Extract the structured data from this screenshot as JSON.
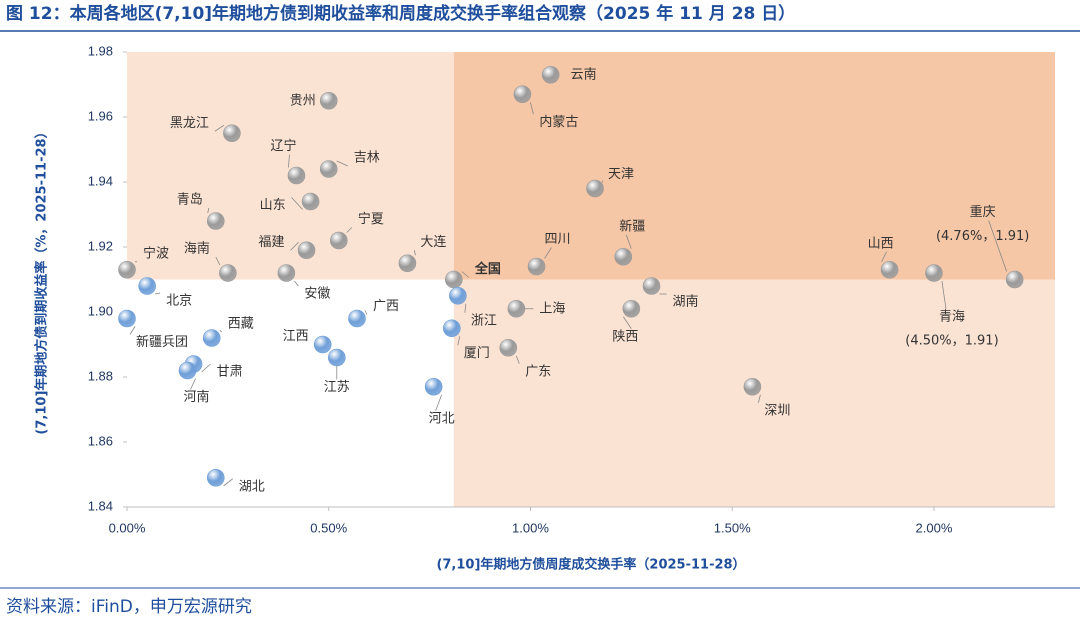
{
  "chart_data": {
    "type": "scatter",
    "title": "图 12：本周各地区(7,10]年期地方债到期收益率和周度成交换手率组合观察（2025 年 11 月 28 日）",
    "x_label": "(7,10]年期地方债周度成交换手率（2025-11-28）",
    "y_label": "(7,10]年期地方债到期收益率（%，2025-11-28）",
    "source": "资料来源：iFinD，申万宏源研究",
    "xlim": [
      0,
      2.3
    ],
    "ylim": [
      1.84,
      1.98
    ],
    "xticks": [
      {
        "value": 0,
        "label": "0.00%"
      },
      {
        "value": 0.5,
        "label": "0.50%"
      },
      {
        "value": 1,
        "label": "1.00%"
      },
      {
        "value": 1.5,
        "label": "1.50%"
      },
      {
        "value": 2,
        "label": "2.00%"
      }
    ],
    "yticks": [
      1.84,
      1.86,
      1.88,
      {
        "value": 1.9,
        "label": "1.90"
      },
      1.92,
      1.94,
      1.96,
      1.98
    ],
    "quadrant_split": {
      "x": 0.81,
      "y": 1.91
    },
    "quadrant_colors": {
      "upper_left": "#fbe3d3",
      "upper_right": "#f6c7a6",
      "lower_right": "#fbe3d3"
    },
    "points": [
      {
        "name": "云南",
        "x": 1.05,
        "y": 1.973,
        "color": "#9a9a9a"
      },
      {
        "name": "内蒙古",
        "x": 0.98,
        "y": 1.967,
        "color": "#9a9a9a"
      },
      {
        "name": "贵州",
        "x": 0.5,
        "y": 1.965,
        "color": "#9a9a9a"
      },
      {
        "name": "黑龙江",
        "x": 0.26,
        "y": 1.955,
        "color": "#9a9a9a"
      },
      {
        "name": "吉林",
        "x": 0.5,
        "y": 1.944,
        "color": "#9a9a9a"
      },
      {
        "name": "辽宁",
        "x": 0.42,
        "y": 1.942,
        "color": "#9a9a9a"
      },
      {
        "name": "天津",
        "x": 1.16,
        "y": 1.938,
        "color": "#9a9a9a"
      },
      {
        "name": "山东",
        "x": 0.455,
        "y": 1.934,
        "color": "#9a9a9a"
      },
      {
        "name": "青岛",
        "x": 0.22,
        "y": 1.928,
        "color": "#9a9a9a"
      },
      {
        "name": "宁夏",
        "x": 0.525,
        "y": 1.922,
        "color": "#9a9a9a"
      },
      {
        "name": "福建",
        "x": 0.445,
        "y": 1.919,
        "color": "#9a9a9a"
      },
      {
        "name": "新疆",
        "x": 1.23,
        "y": 1.917,
        "color": "#9a9a9a"
      },
      {
        "name": "大连",
        "x": 0.695,
        "y": 1.915,
        "color": "#9a9a9a"
      },
      {
        "name": "四川",
        "x": 1.015,
        "y": 1.914,
        "color": "#9a9a9a"
      },
      {
        "name": "海南",
        "x": 0.25,
        "y": 1.912,
        "color": "#9a9a9a"
      },
      {
        "name": "安徽",
        "x": 0.395,
        "y": 1.912,
        "color": "#9a9a9a"
      },
      {
        "name": "宁波",
        "x": 0,
        "y": 1.913,
        "color": "#9a9a9a"
      },
      {
        "name": "山西",
        "x": 1.89,
        "y": 1.913,
        "color": "#9a9a9a"
      },
      {
        "name": "青海",
        "x": 2,
        "y": 1.912,
        "color": "#9a9a9a",
        "annotation": "(4.50%，1.91)"
      },
      {
        "name": "重庆",
        "x": 2.2,
        "y": 1.91,
        "color": "#9a9a9a",
        "annotation": "(4.76%，1.91)"
      },
      {
        "name": "全国",
        "x": 0.81,
        "y": 1.91,
        "color": "#9a9a9a"
      },
      {
        "name": "北京",
        "x": 0.05,
        "y": 1.908,
        "color": "#6f9fd8"
      },
      {
        "name": "湖南",
        "x": 1.3,
        "y": 1.908,
        "color": "#9a9a9a"
      },
      {
        "name": "浙江",
        "x": 0.82,
        "y": 1.905,
        "color": "#6f9fd8"
      },
      {
        "name": "上海",
        "x": 0.965,
        "y": 1.901,
        "color": "#9a9a9a"
      },
      {
        "name": "陕西",
        "x": 1.25,
        "y": 1.901,
        "color": "#9a9a9a"
      },
      {
        "name": "新疆兵团",
        "x": 0,
        "y": 1.898,
        "color": "#6f9fd8"
      },
      {
        "name": "广西",
        "x": 0.57,
        "y": 1.898,
        "color": "#6f9fd8"
      },
      {
        "name": "西藏",
        "x": 0.21,
        "y": 1.892,
        "color": "#6f9fd8"
      },
      {
        "name": "厦门",
        "x": 0.805,
        "y": 1.895,
        "color": "#6f9fd8"
      },
      {
        "name": "江西",
        "x": 0.485,
        "y": 1.89,
        "color": "#6f9fd8"
      },
      {
        "name": "广东",
        "x": 0.945,
        "y": 1.889,
        "color": "#9a9a9a"
      },
      {
        "name": "江苏",
        "x": 0.52,
        "y": 1.886,
        "color": "#6f9fd8"
      },
      {
        "name": "甘肃",
        "x": 0.165,
        "y": 1.884,
        "color": "#6f9fd8"
      },
      {
        "name": "河南",
        "x": 0.15,
        "y": 1.882,
        "color": "#6f9fd8"
      },
      {
        "name": "河北",
        "x": 0.76,
        "y": 1.877,
        "color": "#6f9fd8"
      },
      {
        "name": "深圳",
        "x": 1.55,
        "y": 1.877,
        "color": "#9a9a9a"
      },
      {
        "name": "湖北",
        "x": 0.22,
        "y": 1.849,
        "color": "#6f9fd8"
      }
    ]
  }
}
